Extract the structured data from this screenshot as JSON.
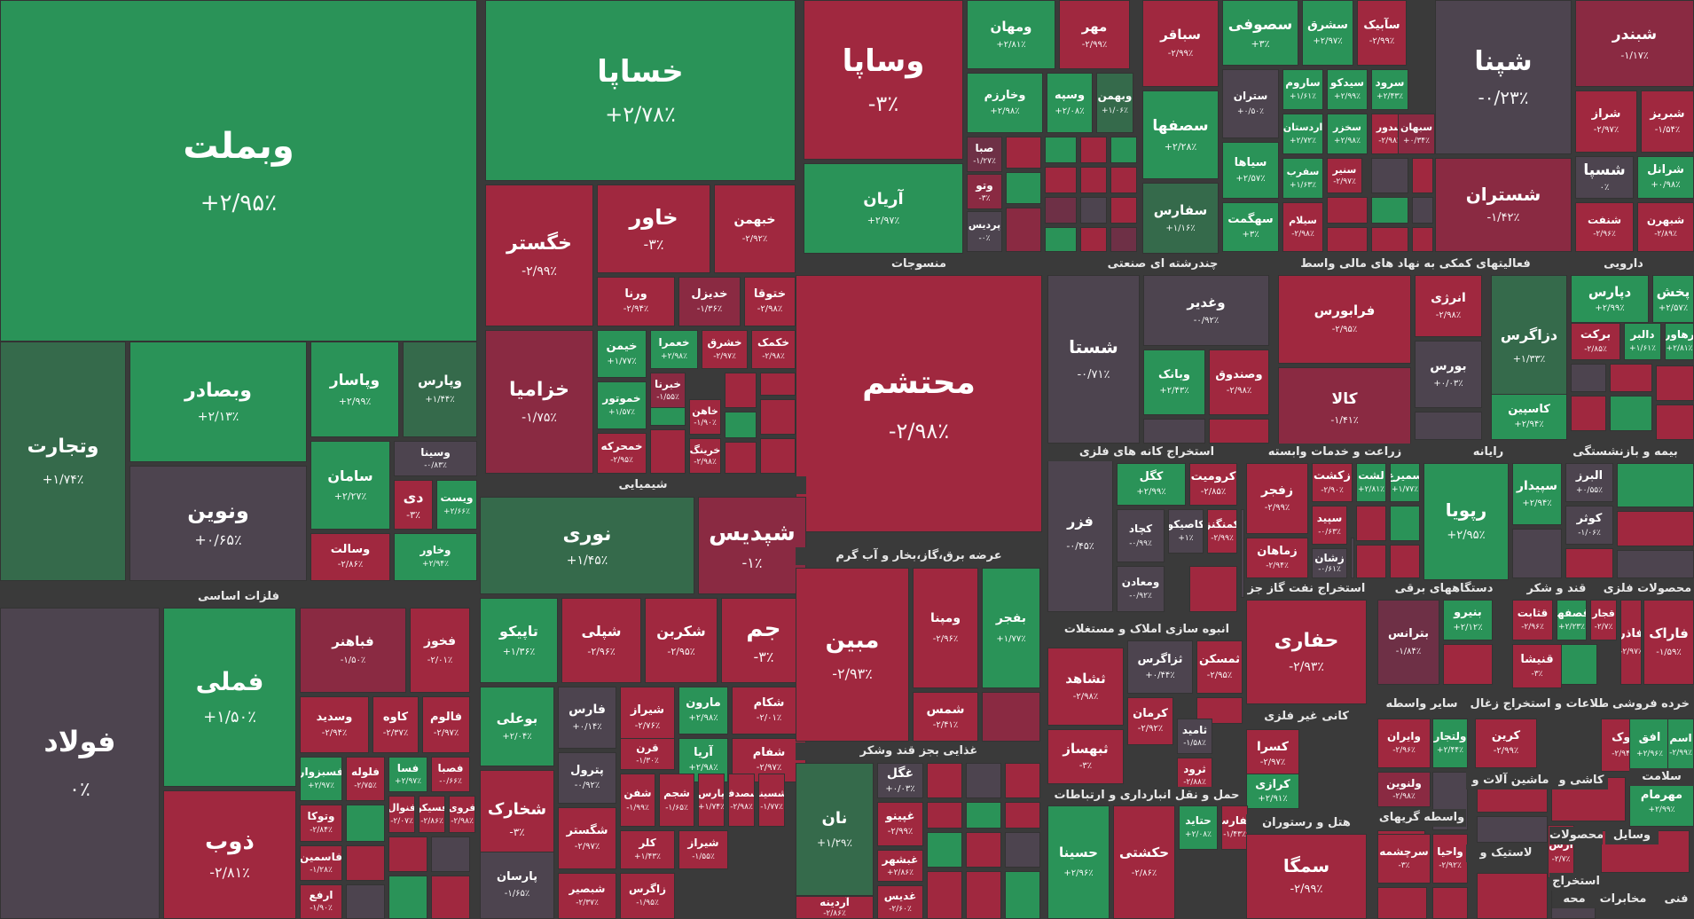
{
  "sectors": [
    {
      "key": "metals",
      "label": "فلزات اساسی"
    },
    {
      "key": "chem",
      "label": "شیمیایی"
    },
    {
      "key": "textile",
      "label": "منسوجات"
    },
    {
      "key": "industrial",
      "label": "چندرشته ای صنعتی"
    },
    {
      "key": "finance",
      "label": "فعالیتهای کمکی به نهاد های مالی واسط"
    },
    {
      "key": "pharma",
      "label": "دارویی"
    },
    {
      "key": "utility",
      "label": "عرضه برق،گاز،بخار و آب گرم"
    },
    {
      "key": "mining",
      "label": "استخراج کانه های فلزی"
    },
    {
      "key": "agri",
      "label": "زراعت و خدمات وابسته"
    },
    {
      "key": "computer",
      "label": "رایانه"
    },
    {
      "key": "insurance",
      "label": "بیمه و بازنشستگی"
    },
    {
      "key": "oilgas",
      "label": "استخراج نفت گاز جز"
    },
    {
      "key": "electric",
      "label": "دستگاههای برقی"
    },
    {
      "key": "sugar",
      "label": "قند و شکر"
    },
    {
      "key": "metalproducts",
      "label": "محصولات فلزی"
    },
    {
      "key": "realestate",
      "label": "انبوه سازی املاک و مستغلات"
    },
    {
      "key": "food",
      "label": "غذایی بجز قند وشکر"
    },
    {
      "key": "nonmetal",
      "label": "کانی غیر فلزی"
    },
    {
      "key": "transport",
      "label": "حمل و نقل انبارداری و ارتباطات"
    },
    {
      "key": "hotel",
      "label": "هتل و رستوران"
    },
    {
      "key": "otherfin",
      "label": "سایر واسطه"
    },
    {
      "key": "coal",
      "label": "استخراج زغال"
    },
    {
      "key": "info",
      "label": "اطلاعات و"
    },
    {
      "key": "retail",
      "label": "خرده فروشی"
    },
    {
      "key": "machinery",
      "label": "ماشین آلات و"
    },
    {
      "key": "tiles",
      "label": "کاشی و"
    },
    {
      "key": "health",
      "label": "سلامت"
    },
    {
      "key": "finbrokers",
      "label": "واسطه گریهای"
    },
    {
      "key": "products",
      "label": "محصولات"
    },
    {
      "key": "vehicles",
      "label": "وسایل"
    },
    {
      "key": "tires",
      "label": "لاستیک و"
    },
    {
      "key": "extract",
      "label": "استخراج"
    },
    {
      "key": "other1",
      "label": "فنی"
    },
    {
      "key": "other2",
      "label": "مخابرات"
    },
    {
      "key": "other3",
      "label": "محه"
    }
  ],
  "tiles": [
    {
      "symbol": "وبملت",
      "change": "+۲/۹۵٪"
    },
    {
      "symbol": "خساپا",
      "change": "+۲/۷۸٪"
    },
    {
      "symbol": "وساپا",
      "change": "-۳٪"
    },
    {
      "symbol": "ومهان",
      "change": "+۲/۸۱٪"
    },
    {
      "symbol": "مهر",
      "change": "-۲/۹۹٪"
    },
    {
      "symbol": "سباقر",
      "change": "-۲/۹۹٪"
    },
    {
      "symbol": "سصوفی",
      "change": "+۳٪"
    },
    {
      "symbol": "سشرق",
      "change": "+۲/۹۷٪"
    },
    {
      "symbol": "سآبیک",
      "change": "-۲/۹۹٪"
    },
    {
      "symbol": "شپنا",
      "change": "-۰/۲۳٪"
    },
    {
      "symbol": "شبندر",
      "change": "-۱/۱۷٪"
    },
    {
      "symbol": "وخارزم",
      "change": "+۲/۹۸٪"
    },
    {
      "symbol": "وسپه",
      "change": "+۲/۰۸٪"
    },
    {
      "symbol": "وبهمن",
      "change": "+۱/۰۶٪"
    },
    {
      "symbol": "ستران",
      "change": "+۰/۵۰٪"
    },
    {
      "symbol": "ساروم",
      "change": "+۱/۶۱٪"
    },
    {
      "symbol": "سیدکو",
      "change": "+۲/۹۹٪"
    },
    {
      "symbol": "سرود",
      "change": "+۲/۴۳٪"
    },
    {
      "symbol": "آریان",
      "change": "+۲/۹۷٪"
    },
    {
      "symbol": "صبا",
      "change": "-۱/۲۷٪"
    },
    {
      "symbol": "وتو",
      "change": "-۳٪"
    },
    {
      "symbol": "پردیس",
      "change": "-۰٪"
    },
    {
      "symbol": "سصفها",
      "change": "+۲/۲۸٪"
    },
    {
      "symbol": "سفارس",
      "change": "+۱/۱۶٪"
    },
    {
      "symbol": "سیاها",
      "change": "+۲/۵۷٪"
    },
    {
      "symbol": "سهگمت",
      "change": "+۳٪"
    },
    {
      "symbol": "اردستان",
      "change": "+۲/۷۲٪"
    },
    {
      "symbol": "سخزر",
      "change": "+۲/۹۸٪"
    },
    {
      "symbol": "سدور",
      "change": "-۲/۹۸٪"
    },
    {
      "symbol": "سبهان",
      "change": "+۰/۳۴٪"
    },
    {
      "symbol": "سفرب",
      "change": "+۱/۶۳٪"
    },
    {
      "symbol": "سنیر",
      "change": "-۲/۹۷٪"
    },
    {
      "symbol": "سیلام",
      "change": "-۲/۹۸٪"
    },
    {
      "symbol": "شراز",
      "change": "-۲/۹۷٪"
    },
    {
      "symbol": "شبریز",
      "change": "-۱/۵۴٪"
    },
    {
      "symbol": "شستران",
      "change": "-۱/۴۲٪"
    },
    {
      "symbol": "شسپا",
      "change": "۰٪"
    },
    {
      "symbol": "شرانل",
      "change": "+۰/۹۸٪"
    },
    {
      "symbol": "شنفت",
      "change": "-۲/۹۶٪"
    },
    {
      "symbol": "شبهرن",
      "change": "-۲/۸۹٪"
    },
    {
      "symbol": "خگستر",
      "change": "-۲/۹۹٪"
    },
    {
      "symbol": "خاور",
      "change": "-۳٪"
    },
    {
      "symbol": "خبهمن",
      "change": "-۲/۹۲٪"
    },
    {
      "symbol": "ورنا",
      "change": "-۲/۹۴٪"
    },
    {
      "symbol": "خدیزل",
      "change": "-۱/۳۶٪"
    },
    {
      "symbol": "ختوقا",
      "change": "-۲/۹۸٪"
    },
    {
      "symbol": "خزامیا",
      "change": "-۱/۷۵٪"
    },
    {
      "symbol": "خیمن",
      "change": "+۱/۷۷٪"
    },
    {
      "symbol": "خعمرا",
      "change": "+۲/۹۸٪"
    },
    {
      "symbol": "خشرق",
      "change": "-۲/۹۷٪"
    },
    {
      "symbol": "خکمک",
      "change": "-۲/۹۸٪"
    },
    {
      "symbol": "خموتور",
      "change": "+۱/۵۷٪"
    },
    {
      "symbol": "خبرنا",
      "change": "-۱/۵۵٪"
    },
    {
      "symbol": "خمحرکه",
      "change": "-۲/۹۵٪"
    },
    {
      "symbol": "خاهن",
      "change": "-۱/۹۰٪"
    },
    {
      "symbol": "خرینگ",
      "change": "-۲/۹۸٪"
    },
    {
      "symbol": "وبصادر",
      "change": "+۲/۱۳٪"
    },
    {
      "symbol": "وپاسار",
      "change": "+۲/۹۹٪"
    },
    {
      "symbol": "وپارس",
      "change": "+۱/۴۴٪"
    },
    {
      "symbol": "وتجارت",
      "change": "+۱/۷۴٪"
    },
    {
      "symbol": "ونوین",
      "change": "+۰/۶۵٪"
    },
    {
      "symbol": "سامان",
      "change": "+۲/۲۷٪"
    },
    {
      "symbol": "وسینا",
      "change": "-۰/۸۳٪"
    },
    {
      "symbol": "دی",
      "change": "-۳٪"
    },
    {
      "symbol": "ویست",
      "change": "+۲/۶۶٪"
    },
    {
      "symbol": "وسالت",
      "change": "-۲/۸۶٪"
    },
    {
      "symbol": "وخاور",
      "change": "+۲/۹۴٪"
    },
    {
      "symbol": "محتشم",
      "change": "-۲/۹۸٪"
    },
    {
      "symbol": "شستا",
      "change": "-۰/۷۱٪"
    },
    {
      "symbol": "وغدیر",
      "change": "-۰/۹۲٪"
    },
    {
      "symbol": "وبانک",
      "change": "+۲/۴۳٪"
    },
    {
      "symbol": "وصندوق",
      "change": "-۲/۹۸٪"
    },
    {
      "symbol": "فرابورس",
      "change": "-۲/۹۵٪"
    },
    {
      "symbol": "کالا",
      "change": "-۱/۴۱٪"
    },
    {
      "symbol": "انرژی",
      "change": "-۲/۹۸٪"
    },
    {
      "symbol": "بورس",
      "change": "+۰/۰۳٪"
    },
    {
      "symbol": "دزاگرس",
      "change": "+۱/۳۳٪"
    },
    {
      "symbol": "دپارس",
      "change": "+۲/۹۹٪"
    },
    {
      "symbol": "پخش",
      "change": "+۲/۵۷٪"
    },
    {
      "symbol": "برکت",
      "change": "-۲/۸۵٪"
    },
    {
      "symbol": "دالبر",
      "change": "+۱/۶۱٪"
    },
    {
      "symbol": "رهاور",
      "change": "+۲/۸۱٪"
    },
    {
      "symbol": "کاسپین",
      "change": "+۲/۹۴٪"
    },
    {
      "symbol": "نوری",
      "change": "+۱/۴۵٪"
    },
    {
      "symbol": "شپدیس",
      "change": "-۱٪"
    },
    {
      "symbol": "تاپیکو",
      "change": "+۱/۳۶٪"
    },
    {
      "symbol": "شپلی",
      "change": "-۲/۹۶٪"
    },
    {
      "symbol": "شکربن",
      "change": "-۲/۹۵٪"
    },
    {
      "symbol": "جم",
      "change": "-۳٪"
    },
    {
      "symbol": "بوعلی",
      "change": "+۲/۰۴٪"
    },
    {
      "symbol": "فارس",
      "change": "+۰/۱۴٪"
    },
    {
      "symbol": "شیراز",
      "change": "-۲/۷۶٪"
    },
    {
      "symbol": "مارون",
      "change": "+۲/۹۸٪"
    },
    {
      "symbol": "شکام",
      "change": "-۲/۰۱٪"
    },
    {
      "symbol": "پترول",
      "change": "-۰/۹۲٪"
    },
    {
      "symbol": "قرن",
      "change": "-۱/۳۰٪"
    },
    {
      "symbol": "آریا",
      "change": "+۲/۹۸٪"
    },
    {
      "symbol": "شفام",
      "change": "-۲/۹۷٪"
    },
    {
      "symbol": "شخارک",
      "change": "-۳٪"
    },
    {
      "symbol": "شگستر",
      "change": "-۲/۹۷٪"
    },
    {
      "symbol": "شفن",
      "change": "-۱/۹۹٪"
    },
    {
      "symbol": "شجم",
      "change": "-۱/۶۵٪"
    },
    {
      "symbol": "پارس",
      "change": "+۱/۷۴٪"
    },
    {
      "symbol": "شصدف",
      "change": "-۲/۹۸٪"
    },
    {
      "symbol": "شسینا",
      "change": "-۱/۷۷٪"
    },
    {
      "symbol": "کلر",
      "change": "+۱/۴۳٪"
    },
    {
      "symbol": "شیراز",
      "change": "-۱/۵۵٪"
    },
    {
      "symbol": "پارسان",
      "change": "-۱/۶۵٪"
    },
    {
      "symbol": "شبصیر",
      "change": "-۲/۳۷٪"
    },
    {
      "symbol": "زاگرس",
      "change": "-۱/۹۵٪"
    },
    {
      "symbol": "فولاد",
      "change": "۰٪"
    },
    {
      "symbol": "فملی",
      "change": "+۱/۵۰٪"
    },
    {
      "symbol": "ذوب",
      "change": "-۲/۸۱٪"
    },
    {
      "symbol": "فباهنر",
      "change": "-۱/۵۰٪"
    },
    {
      "symbol": "فخوز",
      "change": "-۲/۰۱٪"
    },
    {
      "symbol": "وسدید",
      "change": "-۲/۹۴٪"
    },
    {
      "symbol": "کاوه",
      "change": "-۲/۳۷٪"
    },
    {
      "symbol": "فالوم",
      "change": "-۲/۹۷٪"
    },
    {
      "symbol": "فسبزوار",
      "change": "+۲/۹۷٪"
    },
    {
      "symbol": "فلوله",
      "change": "-۲/۷۵٪"
    },
    {
      "symbol": "فسا",
      "change": "+۲/۹۷٪"
    },
    {
      "symbol": "فصبا",
      "change": "-۰/۶۶٪"
    },
    {
      "symbol": "وتوکا",
      "change": "-۲/۸۴٪"
    },
    {
      "symbol": "فنوال",
      "change": "-۲/۰۷٪"
    },
    {
      "symbol": "فسیکو",
      "change": "-۲/۸۶٪"
    },
    {
      "symbol": "فروی",
      "change": "-۲/۹۸٪"
    },
    {
      "symbol": "فاسمین",
      "change": "-۱/۲۸٪"
    },
    {
      "symbol": "ارفع",
      "change": "-۱/۹۰٪"
    },
    {
      "symbol": "مبین",
      "change": "-۲/۹۳٪"
    },
    {
      "symbol": "ومپنا",
      "change": "-۲/۹۶٪"
    },
    {
      "symbol": "بفجر",
      "change": "+۱/۷۷٪"
    },
    {
      "symbol": "شمس",
      "change": "-۲/۴۱٪"
    },
    {
      "symbol": "نان",
      "change": "+۱/۲۹٪"
    },
    {
      "symbol": "غگل",
      "change": "+۰/۰۳٪"
    },
    {
      "symbol": "غپینو",
      "change": "-۲/۹۹٪"
    },
    {
      "symbol": "غبشهر",
      "change": "+۲/۸۶٪"
    },
    {
      "symbol": "آردینه",
      "change": "-۲/۸۶٪"
    },
    {
      "symbol": "غدیس",
      "change": "-۲/۶۰٪"
    },
    {
      "symbol": "فزر",
      "change": "-۰/۴۵٪"
    },
    {
      "symbol": "کگل",
      "change": "+۲/۹۹٪"
    },
    {
      "symbol": "کرومیت",
      "change": "-۲/۸۵٪"
    },
    {
      "symbol": "کچاد",
      "change": "-۰/۹۹٪"
    },
    {
      "symbol": "کاصیکو",
      "change": "+۱٪"
    },
    {
      "symbol": "کمنگنز",
      "change": "-۲/۹۹٪"
    },
    {
      "symbol": "ومعادن",
      "change": "-۰/۹۲٪"
    },
    {
      "symbol": "زفجر",
      "change": "-۲/۹۹٪"
    },
    {
      "symbol": "زکشت",
      "change": "-۲/۹۰٪"
    },
    {
      "symbol": "لشت",
      "change": "+۲/۸۱٪"
    },
    {
      "symbol": "سمیرغ",
      "change": "+۱/۷۷٪"
    },
    {
      "symbol": "زماهان",
      "change": "-۲/۹۴٪"
    },
    {
      "symbol": "سپید",
      "change": "-۰/۶۳٪"
    },
    {
      "symbol": "زشان",
      "change": "-۰/۶۱٪"
    },
    {
      "symbol": "رپویا",
      "change": "+۲/۹۵٪"
    },
    {
      "symbol": "سپیدار",
      "change": "+۲/۹۴٪"
    },
    {
      "symbol": "البرز",
      "change": "+۰/۵۵٪"
    },
    {
      "symbol": "کوثر",
      "change": "-۱/۰۶٪"
    },
    {
      "symbol": "حفاری",
      "change": "-۲/۹۳٪"
    },
    {
      "symbol": "بترانس",
      "change": "-۱/۸۴٪"
    },
    {
      "symbol": "بنیرو",
      "change": "+۲/۱۲٪"
    },
    {
      "symbol": "قثابت",
      "change": "-۲/۹۶٪"
    },
    {
      "symbol": "قصفها",
      "change": "+۲/۲۳٪"
    },
    {
      "symbol": "قجار",
      "change": "-۲/۷٪"
    },
    {
      "symbol": "قنیشا",
      "change": "-۳٪"
    },
    {
      "symbol": "فاراک",
      "change": "-۱/۵۹٪"
    },
    {
      "symbol": "فاذر",
      "change": "-۲/۹۷٪"
    },
    {
      "symbol": "ثشاهد",
      "change": "-۲/۹۸٪"
    },
    {
      "symbol": "ثزاگرس",
      "change": "+۰/۴۴٪"
    },
    {
      "symbol": "ثمسکن",
      "change": "-۲/۹۵٪"
    },
    {
      "symbol": "کرمان",
      "change": "-۲/۹۲٪"
    },
    {
      "symbol": "ثبهساز",
      "change": "-۳٪"
    },
    {
      "symbol": "ثامید",
      "change": "-۱/۵۸٪"
    },
    {
      "symbol": "ثرود",
      "change": "-۲/۸۸٪"
    },
    {
      "symbol": "کسرا",
      "change": "-۲/۹۷٪"
    },
    {
      "symbol": "کرازی",
      "change": "+۲/۹۱٪"
    },
    {
      "symbol": "حسینا",
      "change": "+۲/۹۶٪"
    },
    {
      "symbol": "حکشتی",
      "change": "-۲/۸۶٪"
    },
    {
      "symbol": "حتاید",
      "change": "+۲/۰۸٪"
    },
    {
      "symbol": "حفارس",
      "change": "-۱/۴۳٪"
    },
    {
      "symbol": "سمگا",
      "change": "-۲/۹۹٪"
    },
    {
      "symbol": "وایران",
      "change": "-۲/۹۶٪"
    },
    {
      "symbol": "ولتجار",
      "change": "+۲/۴۴٪"
    },
    {
      "symbol": "کرین",
      "change": "-۲/۹۹٪"
    },
    {
      "symbol": "ولنوین",
      "change": "-۲/۹۸٪"
    },
    {
      "symbol": "آوک",
      "change": "-۲/۹۴٪"
    },
    {
      "symbol": "افق",
      "change": "+۲/۹۶٪"
    },
    {
      "symbol": "اسم",
      "change": "-۲/۹۹٪"
    },
    {
      "symbol": "مهرمام",
      "change": "+۲/۹۹٪"
    },
    {
      "symbol": "آباد",
      "change": "-۲/۹۸٪"
    },
    {
      "symbol": "سرچشمه",
      "change": "-۳٪"
    },
    {
      "symbol": "واحیا",
      "change": "-۲/۹۲٪"
    },
    {
      "symbol": "آرس",
      "change": "-۲/۷٪"
    }
  ]
}
